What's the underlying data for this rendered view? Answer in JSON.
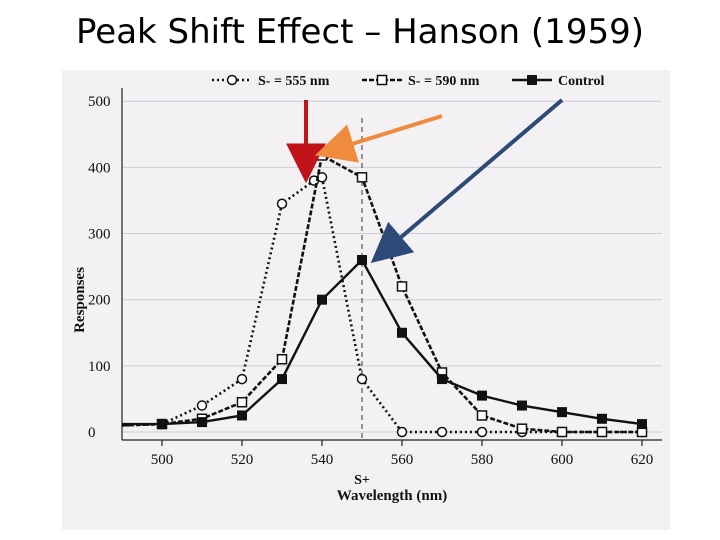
{
  "slide": {
    "title": "Peak Shift Effect – Hanson (1959)"
  },
  "chart_data": {
    "type": "line",
    "xlabel": "Wavelength (nm)",
    "ylabel": "Responses",
    "xlim": [
      490,
      625
    ],
    "ylim": [
      0,
      520
    ],
    "x_ticks": [
      500,
      520,
      540,
      560,
      580,
      600,
      620
    ],
    "y_ticks": [
      0,
      100,
      200,
      300,
      400,
      500
    ],
    "reference_line": {
      "x": 550,
      "label": "S+"
    },
    "legend_position": "top",
    "series": [
      {
        "name": "S- = 555 nm",
        "style": "dotted",
        "marker": "open-circle",
        "x": [
          490,
          500,
          510,
          520,
          530,
          538,
          540,
          550,
          560,
          570,
          580,
          590,
          600,
          610,
          620
        ],
        "y": [
          10,
          12,
          40,
          80,
          345,
          380,
          385,
          80,
          0,
          0,
          0,
          0,
          0,
          0,
          0
        ]
      },
      {
        "name": "S- = 590 nm",
        "style": "dashed",
        "marker": "open-square",
        "x": [
          490,
          500,
          510,
          520,
          530,
          540,
          550,
          560,
          570,
          580,
          590,
          600,
          610,
          620
        ],
        "y": [
          10,
          12,
          20,
          45,
          110,
          418,
          385,
          220,
          90,
          25,
          5,
          0,
          0,
          0
        ]
      },
      {
        "name": "Control",
        "style": "solid",
        "marker": "filled-square",
        "x": [
          490,
          500,
          510,
          520,
          530,
          540,
          550,
          560,
          570,
          580,
          590,
          600,
          610,
          620
        ],
        "y": [
          12,
          12,
          15,
          25,
          80,
          200,
          260,
          150,
          80,
          55,
          40,
          30,
          20,
          12
        ]
      }
    ],
    "annotations": [
      {
        "type": "arrow",
        "color": "#c0141a",
        "points_to": "S- = 555 nm peak"
      },
      {
        "type": "arrow",
        "color": "#f08a3c",
        "points_to": "S- = 590 nm peak"
      },
      {
        "type": "arrow",
        "color": "#2c4a78",
        "points_to": "Control peak"
      }
    ]
  }
}
